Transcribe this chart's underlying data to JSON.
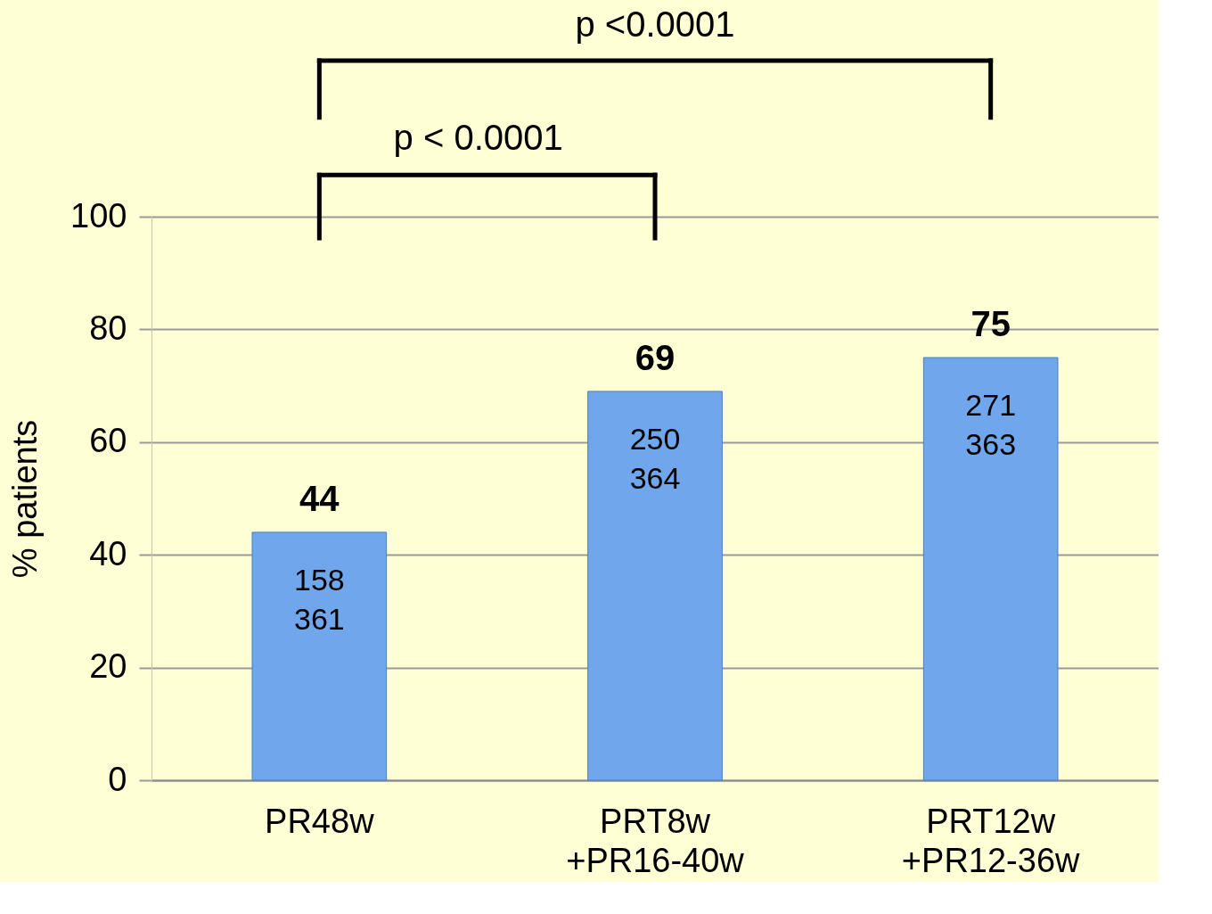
{
  "chart_data": {
    "type": "bar",
    "ylabel": "% patients",
    "categories": [
      "PR48w",
      "PRT8w\n+PR16-40w",
      "PRT12w\n+PR12-36w"
    ],
    "values": [
      44,
      69,
      75
    ],
    "color": "#6fa6ec",
    "data_labels": true,
    "ylim": [
      0,
      100
    ],
    "yticks": [
      0,
      20,
      40,
      60,
      80,
      100
    ],
    "grid": "y",
    "annotations": [
      "158\n361",
      "250\n364",
      "271\n363",
      "p < 0.0001",
      "p <0.0001"
    ]
  }
}
